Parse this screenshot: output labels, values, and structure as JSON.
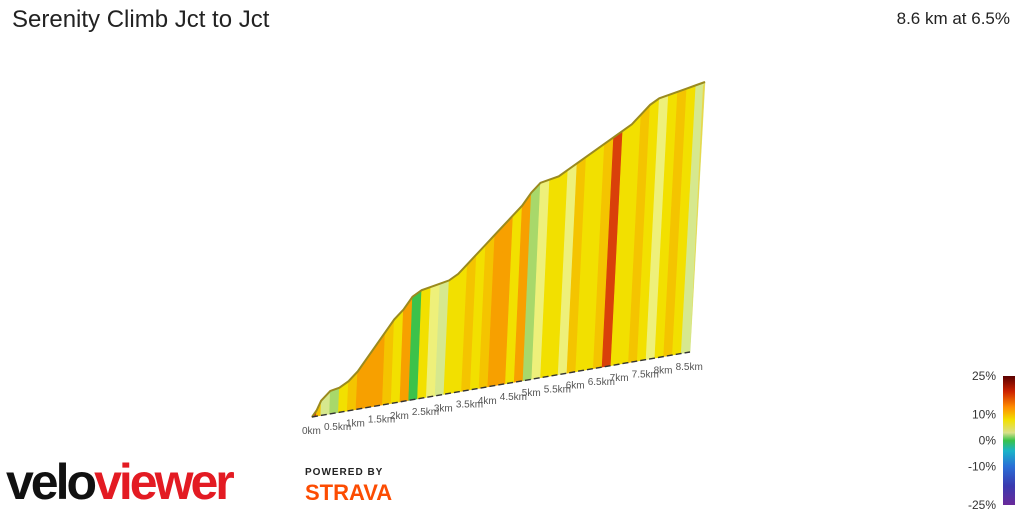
{
  "header": {
    "title": "Serenity Climb Jct to Jct",
    "summary": "8.6 km at 6.5%"
  },
  "branding": {
    "logo_part1": "velo",
    "logo_part2": "viewer",
    "powered_by": "POWERED BY",
    "partner": "STRAVA",
    "logo_color": "#e31b23",
    "partner_color": "#fc4c02"
  },
  "chart_data": {
    "type": "area",
    "title": "Serenity Climb Jct to Jct",
    "xlabel": "",
    "ylabel": "",
    "x_unit": "km",
    "x_range": [
      0,
      8.6
    ],
    "tick_labels": [
      "0km",
      "0.5km",
      "1km",
      "1.5km",
      "2km",
      "2.5km",
      "3km",
      "3.5km",
      "4km",
      "4.5km",
      "5km",
      "5.5km",
      "6km",
      "6.5km",
      "7km",
      "7.5km",
      "8km",
      "8.5km"
    ],
    "distance_km": 8.6,
    "average_gradient_pct": 6.5,
    "profile": {
      "x": [
        0,
        0.1,
        0.2,
        0.4,
        0.6,
        0.8,
        1.0,
        1.2,
        1.4,
        1.6,
        1.8,
        2.0,
        2.2,
        2.4,
        2.6,
        2.8,
        3.0,
        3.2,
        3.4,
        3.6,
        3.8,
        4.0,
        4.2,
        4.4,
        4.6,
        4.8,
        5.0,
        5.2,
        5.4,
        5.6,
        5.8,
        6.0,
        6.2,
        6.4,
        6.6,
        6.8,
        7.0,
        7.2,
        7.4,
        7.6,
        7.8,
        8.0,
        8.2,
        8.4,
        8.6
      ],
      "elevation_rel": [
        0.0,
        0.02,
        0.05,
        0.08,
        0.09,
        0.11,
        0.14,
        0.18,
        0.22,
        0.26,
        0.3,
        0.33,
        0.37,
        0.39,
        0.4,
        0.41,
        0.42,
        0.44,
        0.47,
        0.5,
        0.53,
        0.56,
        0.59,
        0.62,
        0.65,
        0.69,
        0.72,
        0.73,
        0.74,
        0.76,
        0.78,
        0.8,
        0.82,
        0.84,
        0.86,
        0.88,
        0.9,
        0.93,
        0.96,
        0.98,
        0.99,
        1.0,
        1.01,
        1.02,
        1.03
      ],
      "gradient_pct": [
        12,
        15,
        9,
        5,
        2,
        7,
        9,
        10,
        11,
        10,
        9,
        8,
        10,
        1,
        8,
        6,
        5,
        7,
        8,
        9,
        8,
        9,
        11,
        10,
        8,
        10,
        3,
        6,
        8,
        7,
        6,
        9,
        7,
        8,
        9,
        14,
        7,
        8,
        9,
        7,
        6,
        8,
        9,
        7,
        5
      ]
    },
    "legend": {
      "placement": "bottom-right",
      "labels": [
        "25%",
        "10%",
        "0%",
        "-10%",
        "-25%"
      ],
      "values": [
        25,
        10,
        0,
        -10,
        -25
      ]
    }
  }
}
